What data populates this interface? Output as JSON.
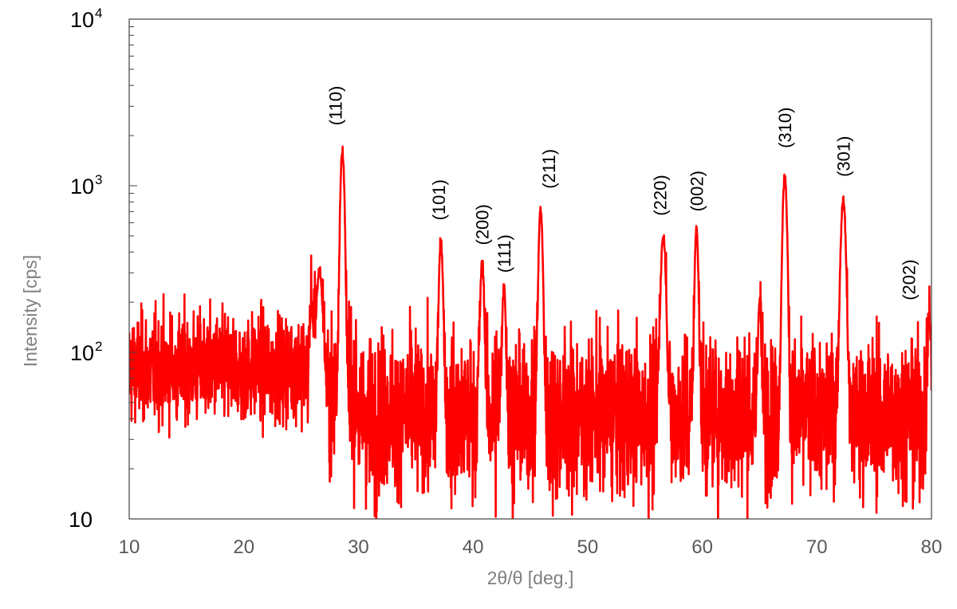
{
  "chart_data": {
    "type": "line",
    "title": "",
    "xlabel": "2θ/θ [deg.]",
    "ylabel": "Intensity [cps]",
    "xlim": [
      10,
      80
    ],
    "ylim": [
      10,
      10000
    ],
    "yscale": "log",
    "grid": false,
    "line_color": "#ff0000",
    "x_ticks": [
      "10",
      "20",
      "30",
      "40",
      "50",
      "60",
      "70",
      "80"
    ],
    "y_ticks": [
      {
        "value": 10,
        "base": "10",
        "exp": ""
      },
      {
        "value": 100,
        "base": "10",
        "exp": "2"
      },
      {
        "value": 1000,
        "base": "10",
        "exp": "3"
      },
      {
        "value": 10000,
        "base": "10",
        "exp": "4"
      }
    ],
    "background": {
      "segments": [
        {
          "x0": 10,
          "x1": 25.5,
          "center": 80,
          "spread": 2.6
        },
        {
          "x0": 25.5,
          "x1": 30,
          "center": 55,
          "spread": 3.6
        },
        {
          "x0": 30,
          "x1": 80,
          "center": 42,
          "spread": 4.0
        }
      ],
      "min": 10
    },
    "peaks": [
      {
        "label": "(110)",
        "x": 28.6,
        "intensity": 1650,
        "width": 0.28
      },
      {
        "label": "",
        "x": 26.6,
        "intensity": 300,
        "width": 0.45
      },
      {
        "label": "",
        "x": 25.9,
        "intensity": 180,
        "width": 0.25
      },
      {
        "label": "(101)",
        "x": 37.2,
        "intensity": 460,
        "width": 0.28
      },
      {
        "label": "(200)",
        "x": 40.8,
        "intensity": 340,
        "width": 0.28
      },
      {
        "label": "(111)",
        "x": 42.7,
        "intensity": 245,
        "width": 0.25
      },
      {
        "label": "(211)",
        "x": 45.9,
        "intensity": 710,
        "width": 0.28
      },
      {
        "label": "(220)",
        "x": 56.6,
        "intensity": 500,
        "width": 0.35
      },
      {
        "label": "(002)",
        "x": 59.5,
        "intensity": 550,
        "width": 0.25
      },
      {
        "label": "",
        "x": 65.0,
        "intensity": 200,
        "width": 0.22
      },
      {
        "label": "(310)",
        "x": 67.2,
        "intensity": 1150,
        "width": 0.3
      },
      {
        "label": "(301)",
        "x": 72.3,
        "intensity": 820,
        "width": 0.35
      },
      {
        "label": "(202)",
        "x": 79.8,
        "intensity": 165,
        "width": 0.2
      }
    ],
    "peak_labels": [
      {
        "text": "(110)",
        "x": 28.0,
        "y": 2300
      },
      {
        "text": "(101)",
        "x": 37.0,
        "y": 620
      },
      {
        "text": "(200)",
        "x": 40.8,
        "y": 440
      },
      {
        "text": "(111)",
        "x": 42.7,
        "y": 300
      },
      {
        "text": "(211)",
        "x": 46.6,
        "y": 960
      },
      {
        "text": "(220)",
        "x": 56.3,
        "y": 660
      },
      {
        "text": "(002)",
        "x": 59.5,
        "y": 700
      },
      {
        "text": "(310)",
        "x": 67.2,
        "y": 1680
      },
      {
        "text": "(301)",
        "x": 72.3,
        "y": 1130
      },
      {
        "text": "(202)",
        "x": 78.0,
        "y": 205
      }
    ]
  }
}
